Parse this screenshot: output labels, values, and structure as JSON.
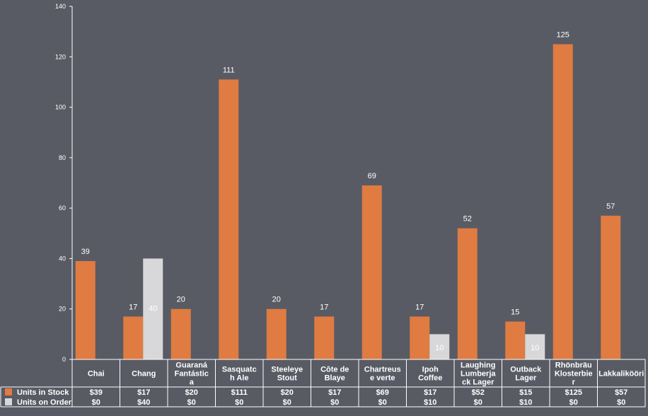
{
  "chart_data": {
    "type": "bar",
    "categories": [
      "Chai",
      "Chang",
      "Guaraná Fantástica",
      "Sasquatch Ale",
      "Steeleye Stout",
      "Côte de Blaye",
      "Chartreuse verte",
      "Ipoh Coffee",
      "Laughing Lumberjack Lager",
      "Outback Lager",
      "Rhönbräu Klosterbier",
      "Lakkalikööri"
    ],
    "category_label_lines": [
      [
        "Chai"
      ],
      [
        "Chang"
      ],
      [
        "Guaraná",
        "Fantástic",
        "a"
      ],
      [
        "Sasquatc",
        "h Ale"
      ],
      [
        "Steeleye",
        "Stout"
      ],
      [
        "Côte de",
        "Blaye"
      ],
      [
        "Chartreus",
        "e verte"
      ],
      [
        "Ipoh",
        "Coffee"
      ],
      [
        "Laughing",
        "Lumberja",
        "ck Lager"
      ],
      [
        "Outback",
        "Lager"
      ],
      [
        "Rhönbräu",
        "Klosterbie",
        "r"
      ],
      [
        "Lakkalikööri"
      ]
    ],
    "series": [
      {
        "name": "Units in Stock",
        "color": "#e07b42",
        "values": [
          39,
          17,
          20,
          111,
          20,
          17,
          69,
          17,
          52,
          15,
          125,
          57
        ],
        "labels": [
          "39",
          "17",
          "20",
          "111",
          "20",
          "17",
          "69",
          "17",
          "52",
          "15",
          "125",
          "57"
        ],
        "table_values": [
          "$39",
          "$17",
          "$20",
          "$111",
          "$20",
          "$17",
          "$69",
          "$17",
          "$52",
          "$15",
          "$125",
          "$57"
        ]
      },
      {
        "name": "Units on Order",
        "color": "#d8d8da",
        "values": [
          0,
          40,
          0,
          0,
          0,
          0,
          0,
          10,
          0,
          10,
          0,
          0
        ],
        "labels": [
          "",
          "40",
          "",
          "",
          "",
          "",
          "",
          "10",
          "",
          "10",
          "",
          ""
        ],
        "table_values": [
          "$0",
          "$40",
          "$0",
          "$0",
          "$0",
          "$0",
          "$0",
          "$10",
          "$0",
          "$10",
          "$0",
          "$0"
        ]
      }
    ],
    "ylim": [
      0,
      140
    ],
    "yticks": [
      0,
      20,
      40,
      60,
      80,
      100,
      120,
      140
    ],
    "ytick_labels": [
      "0",
      "20",
      "40",
      "60",
      "80",
      "100",
      "120",
      "140"
    ],
    "title": "",
    "xlabel": "",
    "ylabel": "",
    "grid": false,
    "legend": "data-table-left"
  }
}
